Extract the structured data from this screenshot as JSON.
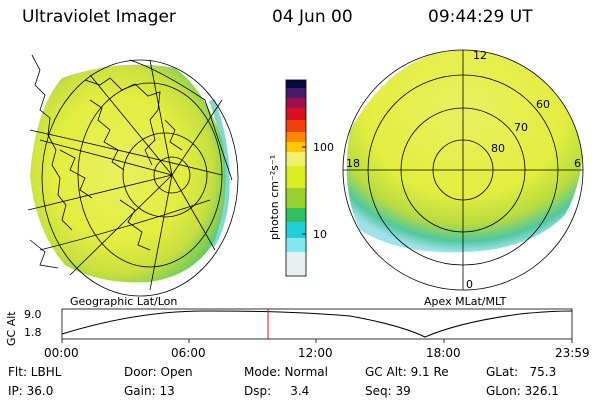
{
  "header": {
    "title": "Ultraviolet Imager",
    "date": "04 Jun 00",
    "time": "09:44:29 UT"
  },
  "colorbar": {
    "label": "photon cm⁻²s⁻¹",
    "ticks": [
      "100",
      "10"
    ],
    "colors": [
      "#0a0a40",
      "#4a1a6a",
      "#a01050",
      "#e01010",
      "#ff7a00",
      "#ffd000",
      "#f5f5a0",
      "#d8f020",
      "#9ad030",
      "#30c060",
      "#20d0d8",
      "#80e8ee",
      "#e8f0f0"
    ]
  },
  "left_map": {
    "caption": "Geographic Lat/Lon"
  },
  "right_map": {
    "caption": "Apex MLat/MLT",
    "mlt_labels": {
      "top": "12",
      "left": "18",
      "right": "6",
      "bottom": "0"
    },
    "lat_labels": [
      "60",
      "70",
      "80"
    ]
  },
  "gc_plot": {
    "ylabel": "GC Alt",
    "yticks": [
      "9.0",
      "1.8"
    ],
    "xticks": [
      "00:00",
      "06:00",
      "12:00",
      "18:00",
      "23:59"
    ]
  },
  "info": {
    "flt": "Flt: LBHL",
    "ip": "IP: 36.0",
    "door": "Door: Open",
    "gain": "Gain: 13",
    "mode": "Mode: Normal",
    "dsp": "Dsp:     3.4",
    "gcalt": "GC Alt: 9.1 Re",
    "seq": "Seq: 39",
    "glat": "GLat:   75.3",
    "glon": "GLon: 326.1"
  }
}
